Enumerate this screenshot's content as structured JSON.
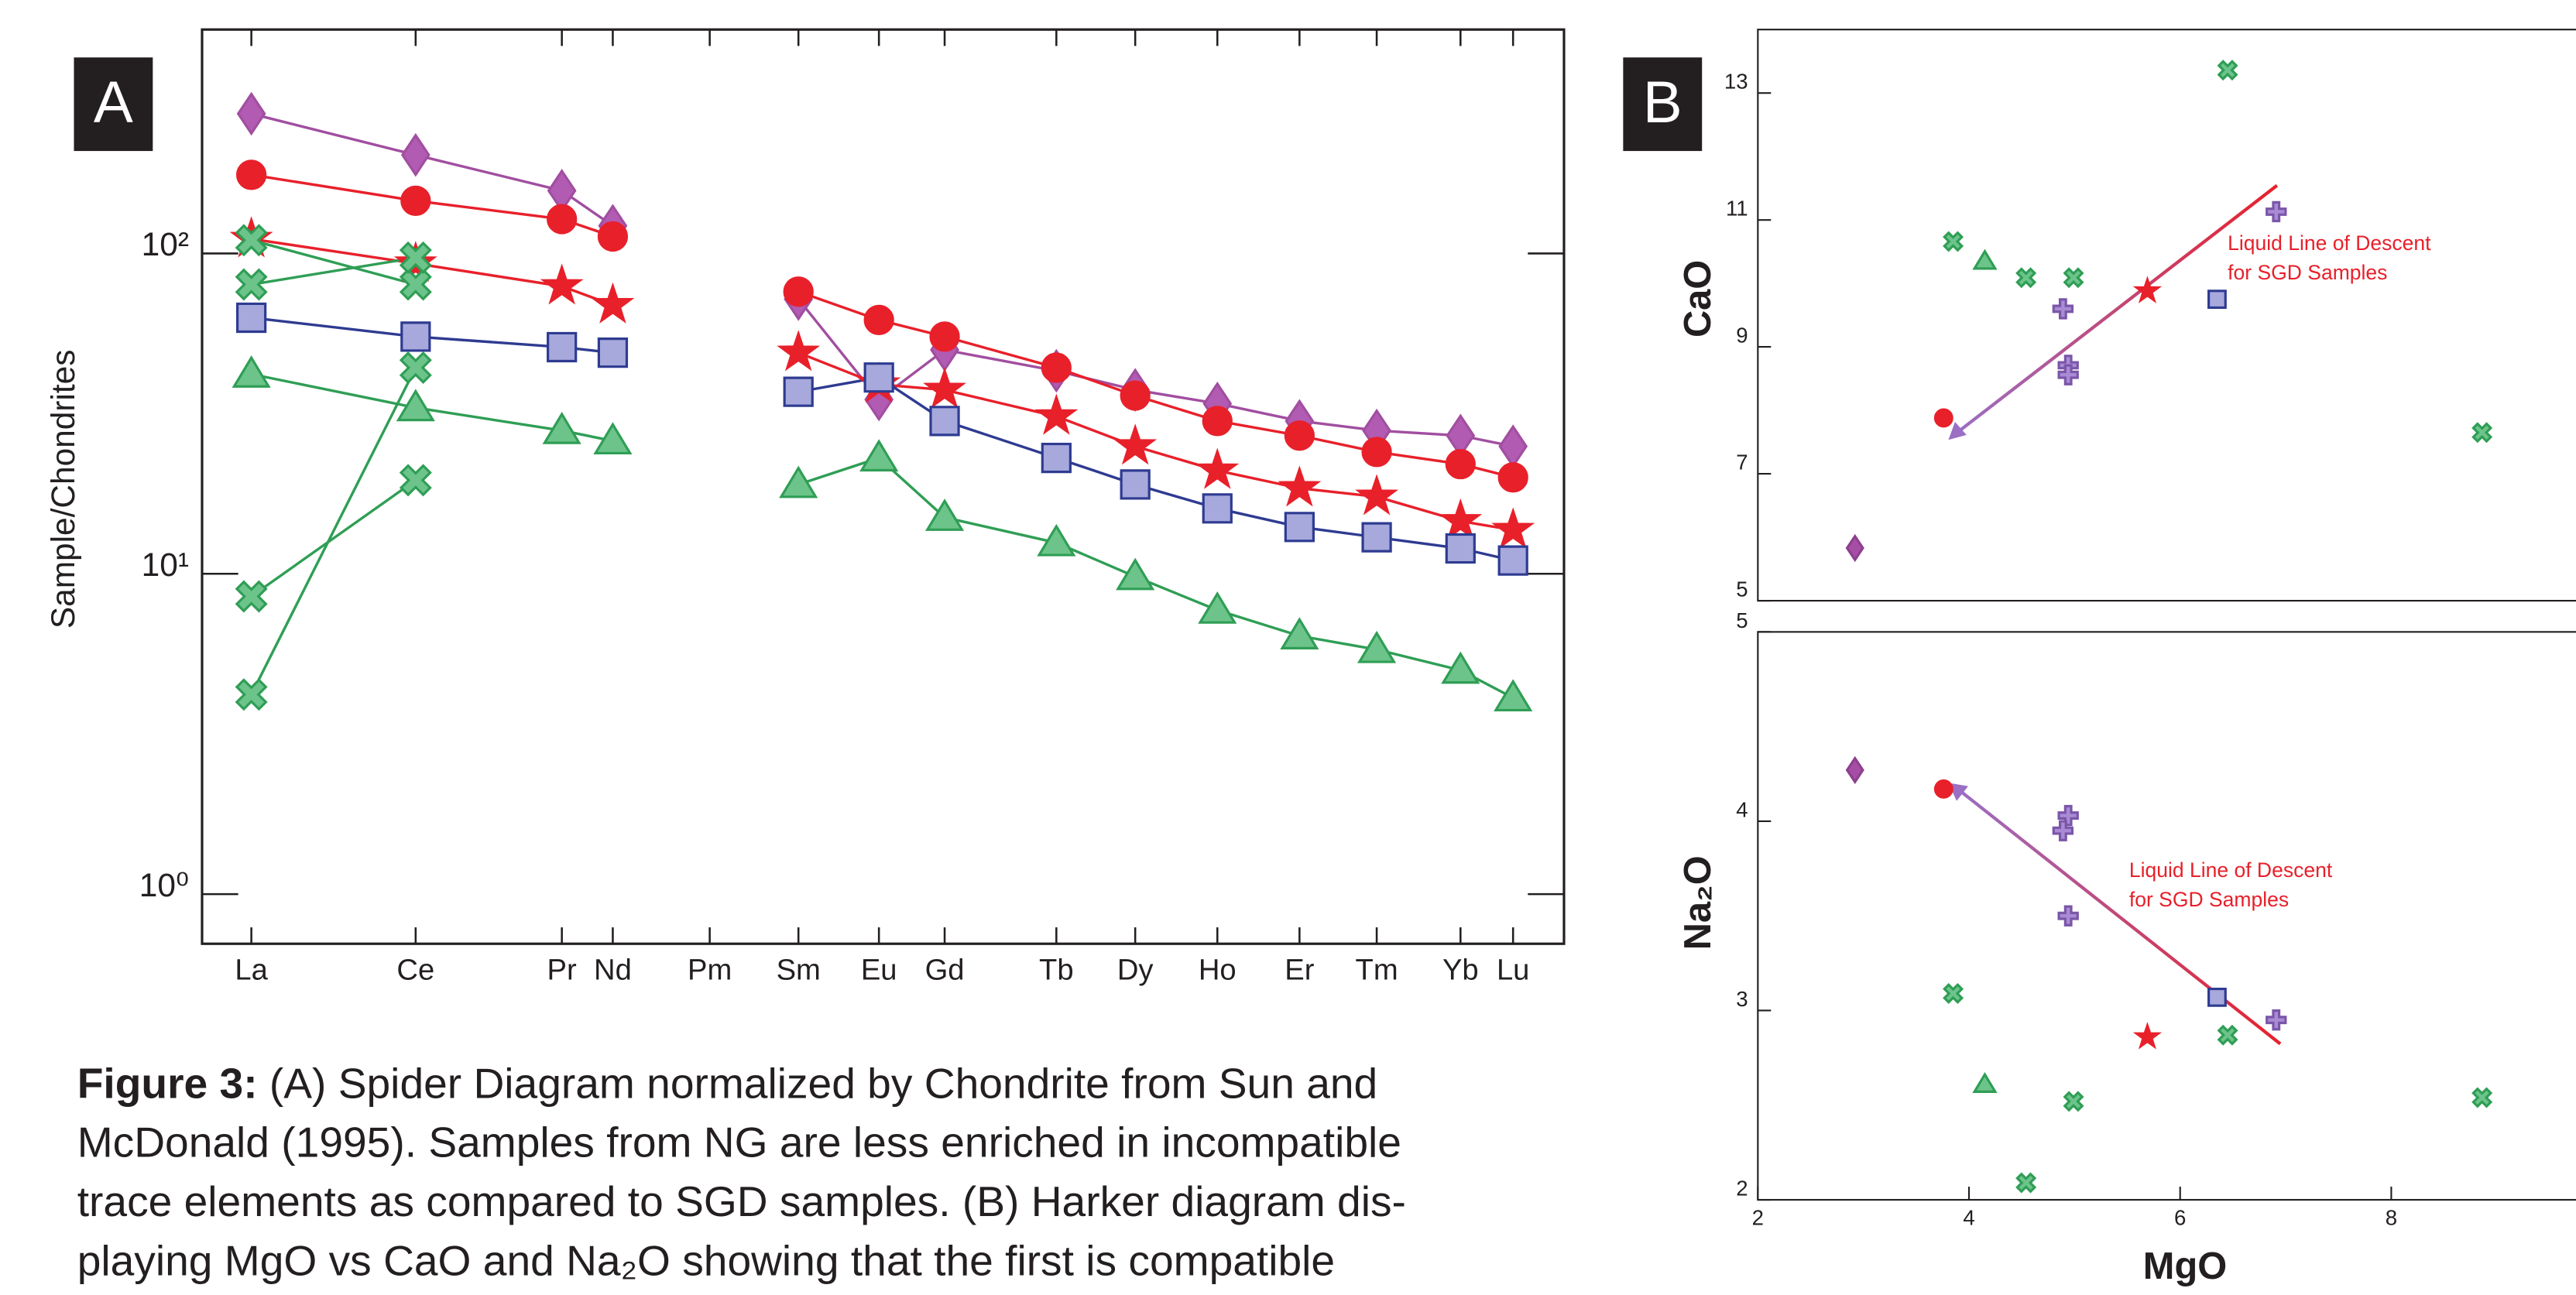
{
  "chart_data": [
    {
      "type": "line",
      "panel": "A",
      "ylabel": "Sample/Chondrites",
      "ylog": true,
      "categories": [
        "La",
        "Ce",
        "Pr",
        "Nd",
        "Pm",
        "Sm",
        "Eu",
        "Gd",
        "Tb",
        "Dy",
        "Ho",
        "Er",
        "Tm",
        "Yb",
        "Lu"
      ],
      "ylim": [
        0.7,
        500
      ],
      "yticks": [
        {
          "value": 1,
          "label": "10⁰"
        },
        {
          "value": 10,
          "label": "10¹"
        },
        {
          "value": 100,
          "label": "10²"
        }
      ],
      "series": [
        {
          "color": "#a14ea0",
          "fill": "#b25bb2",
          "marker": "diamond",
          "values": [
            273,
            203,
            157,
            122,
            null,
            72,
            35,
            50,
            43,
            37.5,
            34,
            30,
            28,
            27,
            25
          ]
        },
        {
          "color": "#e8202a",
          "fill": "#e8202a",
          "marker": "circle",
          "values": [
            176,
            146,
            128,
            113,
            null,
            76,
            62,
            55,
            44,
            36,
            30,
            27,
            24,
            22,
            20
          ]
        },
        {
          "color": "#e8202a",
          "fill": "#e8202a",
          "marker": "star",
          "values": [
            111,
            93,
            79,
            69,
            null,
            49,
            39,
            37.5,
            31,
            25,
            21,
            18.5,
            17.4,
            14.6,
            13.7
          ]
        },
        {
          "color": "#2e3b91",
          "fill": "#a7a9dc",
          "marker": "square",
          "values": [
            63,
            55,
            51,
            49,
            null,
            37,
            41,
            30,
            23,
            19,
            16,
            14,
            13,
            12,
            11
          ]
        },
        {
          "color": "#2f9e55",
          "fill": "#6cc48b",
          "marker": "triangle",
          "values": [
            42,
            33,
            28,
            26,
            null,
            19,
            23,
            15,
            12.5,
            9.8,
            7.7,
            6.4,
            5.8,
            5.0,
            4.1
          ]
        },
        {
          "color": "#2f9e55",
          "fill": "#6cc48b",
          "marker": "cross",
          "values": [
            110,
            80,
            null,
            null,
            null,
            null,
            null,
            null,
            null,
            null,
            null,
            null,
            null,
            null,
            null
          ]
        },
        {
          "color": "#2f9e55",
          "fill": "#6cc48b",
          "marker": "cross",
          "values": [
            80,
            97,
            null,
            null,
            null,
            null,
            null,
            null,
            null,
            null,
            null,
            null,
            null,
            null,
            null
          ]
        },
        {
          "color": "#2f9e55",
          "fill": "#6cc48b",
          "marker": "cross",
          "values": [
            8.5,
            19.6,
            null,
            null,
            null,
            null,
            null,
            null,
            null,
            null,
            null,
            null,
            null,
            null,
            null
          ]
        },
        {
          "color": "#2f9e55",
          "fill": "#6cc48b",
          "marker": "cross",
          "values": [
            4.2,
            44,
            null,
            null,
            null,
            null,
            null,
            null,
            null,
            null,
            null,
            null,
            null,
            null,
            null
          ]
        }
      ]
    },
    {
      "type": "scatter",
      "panel": "B",
      "ylabel": "CaO",
      "xlim": [
        2,
        9.75
      ],
      "ylim": [
        5,
        14
      ],
      "yticks": [
        5,
        7,
        9,
        11,
        13
      ],
      "annotation": [
        "Liquid Line of Descent",
        "for SGD Samples"
      ],
      "series": [
        {
          "color": "#8e3f8e",
          "fill": "#a54ea5",
          "marker": "diamond",
          "x": [
            2.92
          ],
          "values": [
            5.83
          ]
        },
        {
          "color": "#e8202a",
          "fill": "#e8202a",
          "marker": "circle",
          "x": [
            3.76
          ],
          "values": [
            7.88
          ]
        },
        {
          "color": "#2f9e55",
          "fill": "#6cc48b",
          "marker": "cross",
          "x": [
            3.85,
            4.54,
            4.99,
            6.45,
            8.86
          ],
          "values": [
            10.66,
            10.09,
            10.09,
            13.36,
            7.65
          ]
        },
        {
          "color": "#2f9e55",
          "fill": "#6cc48b",
          "marker": "triangle",
          "x": [
            4.15
          ],
          "values": [
            10.35
          ]
        },
        {
          "color": "#7a56a8",
          "fill": "#a88bd4",
          "marker": "plus",
          "x": [
            4.89,
            4.94,
            4.94,
            6.91
          ],
          "values": [
            9.6,
            8.71,
            8.56,
            11.13
          ]
        },
        {
          "color": "#e8202a",
          "fill": "#e8202a",
          "marker": "star",
          "x": [
            5.69
          ],
          "values": [
            9.88
          ]
        },
        {
          "color": "#2e3b91",
          "fill": "#a7a9dc",
          "marker": "square",
          "x": [
            6.35
          ],
          "values": [
            9.75
          ]
        }
      ]
    },
    {
      "type": "scatter",
      "ylabel": "Na₂O",
      "xlabel": "MgO",
      "xlim": [
        2,
        9.75
      ],
      "ylim": [
        2,
        5
      ],
      "xticks": [
        2,
        4,
        6,
        8
      ],
      "yticks": [
        2,
        3,
        4,
        5
      ],
      "annotation": [
        "Liquid Line of Descent",
        "for SGD Samples"
      ],
      "series": [
        {
          "color": "#8e3f8e",
          "fill": "#a54ea5",
          "marker": "diamond",
          "x": [
            2.92
          ],
          "values": [
            4.27
          ]
        },
        {
          "color": "#e8202a",
          "fill": "#e8202a",
          "marker": "circle",
          "x": [
            3.76
          ],
          "values": [
            4.17
          ]
        },
        {
          "color": "#2f9e55",
          "fill": "#6cc48b",
          "marker": "cross",
          "x": [
            3.85,
            4.54,
            4.99,
            6.45,
            8.86
          ],
          "values": [
            3.09,
            2.09,
            2.52,
            2.87,
            2.54
          ]
        },
        {
          "color": "#2f9e55",
          "fill": "#6cc48b",
          "marker": "triangle",
          "x": [
            4.15
          ],
          "values": [
            2.61
          ]
        },
        {
          "color": "#7a56a8",
          "fill": "#a88bd4",
          "marker": "plus",
          "x": [
            4.94,
            4.89,
            4.94,
            6.91
          ],
          "values": [
            4.03,
            3.95,
            3.5,
            2.95
          ]
        },
        {
          "color": "#e8202a",
          "fill": "#e8202a",
          "marker": "star",
          "x": [
            5.69
          ],
          "values": [
            2.86
          ]
        },
        {
          "color": "#2e3b91",
          "fill": "#a7a9dc",
          "marker": "square",
          "x": [
            6.35
          ],
          "values": [
            3.07
          ]
        }
      ]
    }
  ],
  "caption": {
    "label": "Figure 3:",
    "lines": [
      "(A) Spider Diagram normalized by Chondrite from Sun and",
      "McDonald (1995). Samples from NG are less enriched in incompatible",
      "trace elements as compared to SGD samples. (B) Harker diagram dis-",
      "playing MgO vs CaO and Na₂O showing that the first is compatible"
    ]
  }
}
